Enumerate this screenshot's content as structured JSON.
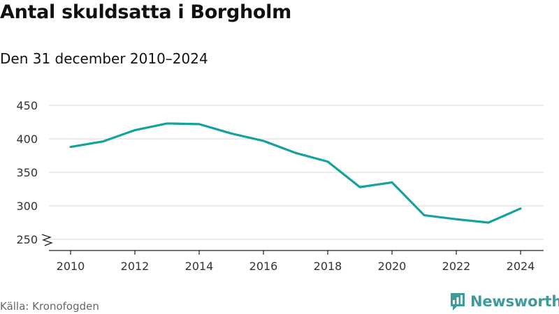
{
  "title": "Antal skuldsatta i Borgholm",
  "subtitle": "Den 31 december 2010–2024",
  "source": "Källa: Kronofogden",
  "brand": {
    "name": "Newsworthy",
    "icon": "newsworthy-logo-icon",
    "color": "#3f9b9a"
  },
  "colors": {
    "line": "#14a39a",
    "grid": "#d9d9d9",
    "axis": "#222222",
    "text": "#333333"
  },
  "chart_data": {
    "type": "line",
    "title": "Antal skuldsatta i Borgholm",
    "subtitle": "Den 31 december 2010–2024",
    "x": [
      2010,
      2011,
      2012,
      2013,
      2014,
      2015,
      2016,
      2017,
      2018,
      2019,
      2020,
      2021,
      2022,
      2023,
      2024
    ],
    "values": [
      388,
      396,
      413,
      423,
      422,
      408,
      397,
      379,
      366,
      328,
      335,
      286,
      280,
      275,
      296
    ],
    "xticks": [
      2010,
      2012,
      2014,
      2016,
      2018,
      2020,
      2022,
      2024
    ],
    "yticks": [
      250,
      300,
      350,
      400,
      450
    ],
    "ylim": [
      235,
      460
    ],
    "xlim": [
      2009.4,
      2024.6
    ],
    "grid": true,
    "axis_break": true,
    "legend": "none"
  }
}
